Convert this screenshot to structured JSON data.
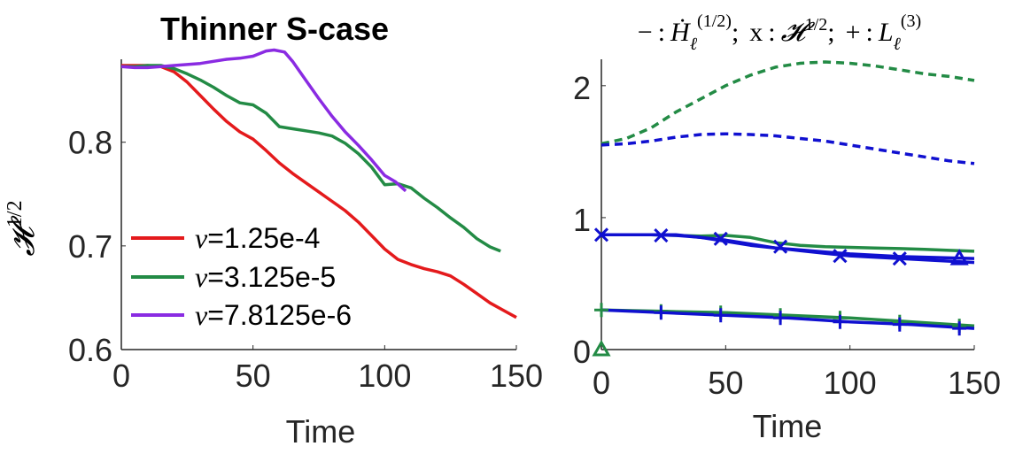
{
  "chart_data": [
    {
      "type": "line",
      "title": "Thinner S-case",
      "xlabel": "Time",
      "ylabel": "𝓗",
      "ylabel_sup": "1/2",
      "xlim": [
        0,
        150
      ],
      "ylim": [
        0.6,
        0.88
      ],
      "xticks": [
        0,
        50,
        100,
        150
      ],
      "yticks": [
        0.6,
        0.7,
        0.8
      ],
      "ytick_labels": [
        "0.6",
        "0.7",
        "0.8"
      ],
      "legend_position": "bottom-left",
      "series": [
        {
          "name": "ν=1.25e-4",
          "nu_symbol": "ν",
          "nu_value": "=1.25e-4",
          "color": "#e41a1c",
          "x": [
            0,
            5,
            10,
            15,
            20,
            25,
            30,
            35,
            40,
            45,
            50,
            55,
            60,
            65,
            70,
            75,
            80,
            85,
            90,
            95,
            100,
            105,
            110,
            115,
            120,
            125,
            130,
            135,
            140,
            145,
            150
          ],
          "y": [
            0.874,
            0.874,
            0.874,
            0.873,
            0.868,
            0.858,
            0.845,
            0.832,
            0.82,
            0.81,
            0.803,
            0.792,
            0.78,
            0.77,
            0.761,
            0.752,
            0.743,
            0.734,
            0.723,
            0.71,
            0.697,
            0.687,
            0.682,
            0.678,
            0.675,
            0.671,
            0.663,
            0.654,
            0.645,
            0.638,
            0.631
          ]
        },
        {
          "name": "ν=3.125e-5",
          "nu_symbol": "ν",
          "nu_value": "=3.125e-5",
          "color": "#238b45",
          "x": [
            0,
            5,
            10,
            15,
            20,
            25,
            30,
            35,
            40,
            45,
            50,
            55,
            60,
            65,
            70,
            75,
            80,
            85,
            90,
            95,
            100,
            105,
            110,
            115,
            120,
            125,
            130,
            135,
            140,
            144
          ],
          "y": [
            0.873,
            0.873,
            0.874,
            0.874,
            0.871,
            0.866,
            0.86,
            0.853,
            0.845,
            0.838,
            0.836,
            0.828,
            0.815,
            0.813,
            0.811,
            0.809,
            0.806,
            0.799,
            0.789,
            0.776,
            0.759,
            0.76,
            0.756,
            0.746,
            0.737,
            0.727,
            0.718,
            0.707,
            0.699,
            0.695
          ]
        },
        {
          "name": "ν=7.8125e-6",
          "nu_symbol": "ν",
          "nu_value": "=7.8125e-6",
          "color": "#8a2be2",
          "x": [
            0,
            5,
            10,
            15,
            20,
            25,
            30,
            35,
            40,
            45,
            50,
            55,
            58,
            62,
            65,
            70,
            75,
            80,
            85,
            90,
            95,
            100,
            104,
            108
          ],
          "y": [
            0.873,
            0.872,
            0.872,
            0.873,
            0.874,
            0.875,
            0.876,
            0.878,
            0.88,
            0.881,
            0.883,
            0.888,
            0.889,
            0.887,
            0.878,
            0.86,
            0.842,
            0.825,
            0.81,
            0.797,
            0.783,
            0.768,
            0.762,
            0.753
          ]
        }
      ]
    },
    {
      "type": "line",
      "title": "− : Ḣℓ(1/2); x : 𝓗1/2; + : Lℓ(3)",
      "title_parts": {
        "minus": "−",
        "colon": ":",
        "H_dot": "Ḣ",
        "ell": "ℓ",
        "H_sup": "(1/2)",
        "semi": ";",
        "x": "x",
        "calH": "𝓗",
        "calH_sup": "1/2",
        "plus": "+",
        "L": "L",
        "L_sup": "(3)"
      },
      "xlabel": "Time",
      "xlim": [
        0,
        150
      ],
      "ylim": [
        0,
        2.2
      ],
      "xticks": [
        0,
        50,
        100,
        150
      ],
      "yticks": [
        0,
        1,
        2
      ],
      "ytick_labels": [
        "0",
        "1",
        "2"
      ],
      "series": [
        {
          "color": "#238b45",
          "style": "dashed",
          "x": [
            0,
            10,
            20,
            30,
            40,
            50,
            60,
            70,
            80,
            90,
            100,
            110,
            120,
            130,
            140,
            150
          ],
          "y": [
            1.56,
            1.6,
            1.68,
            1.8,
            1.9,
            2.0,
            2.08,
            2.14,
            2.17,
            2.18,
            2.17,
            2.15,
            2.12,
            2.09,
            2.07,
            2.04
          ]
        },
        {
          "color": "#1010d0",
          "style": "dashed",
          "x": [
            0,
            10,
            20,
            30,
            40,
            50,
            60,
            70,
            80,
            90,
            100,
            110,
            120,
            130,
            140,
            150
          ],
          "y": [
            1.55,
            1.56,
            1.58,
            1.61,
            1.63,
            1.635,
            1.63,
            1.62,
            1.6,
            1.58,
            1.55,
            1.52,
            1.49,
            1.46,
            1.43,
            1.41
          ]
        },
        {
          "color": "#238b45",
          "style": "solid",
          "x": [
            0,
            10,
            20,
            30,
            40,
            50,
            60,
            70,
            80,
            90,
            100,
            110,
            120,
            130,
            140,
            150
          ],
          "y": [
            0.87,
            0.87,
            0.87,
            0.865,
            0.86,
            0.865,
            0.85,
            0.81,
            0.79,
            0.78,
            0.775,
            0.77,
            0.765,
            0.76,
            0.752,
            0.745
          ]
        },
        {
          "color": "#1010d0",
          "style": "solid",
          "x": [
            0,
            10,
            20,
            30,
            40,
            50,
            60,
            70,
            80,
            90,
            100,
            110,
            120,
            130,
            140,
            150
          ],
          "y": [
            0.87,
            0.87,
            0.87,
            0.87,
            0.85,
            0.83,
            0.8,
            0.77,
            0.75,
            0.73,
            0.71,
            0.7,
            0.69,
            0.68,
            0.67,
            0.66
          ]
        },
        {
          "color": "#1010d0",
          "style": "solid",
          "x": [
            0,
            10,
            20,
            30,
            40,
            50,
            60,
            70,
            80,
            90,
            100,
            110,
            120,
            130,
            140,
            150
          ],
          "y": [
            0.87,
            0.87,
            0.87,
            0.865,
            0.85,
            0.82,
            0.79,
            0.77,
            0.755,
            0.74,
            0.725,
            0.715,
            0.705,
            0.7,
            0.695,
            0.69
          ]
        },
        {
          "color": "#238b45",
          "style": "solid",
          "x": [
            0,
            25,
            50,
            75,
            100,
            125,
            150
          ],
          "y": [
            0.3,
            0.29,
            0.28,
            0.26,
            0.24,
            0.21,
            0.18
          ]
        },
        {
          "color": "#1010d0",
          "style": "solid",
          "x": [
            0,
            25,
            50,
            75,
            100,
            125,
            150
          ],
          "y": [
            0.3,
            0.28,
            0.26,
            0.24,
            0.21,
            0.19,
            0.16
          ]
        }
      ],
      "markers": {
        "x_blue": {
          "color": "#1010d0",
          "x": [
            0,
            24,
            48,
            72,
            96,
            120
          ],
          "y": [
            0.87,
            0.865,
            0.84,
            0.78,
            0.71,
            0.69
          ]
        },
        "plus_green": {
          "color": "#238b45",
          "x": [
            0,
            24,
            48,
            72,
            96,
            120,
            144
          ],
          "y": [
            0.3,
            0.29,
            0.28,
            0.26,
            0.24,
            0.21,
            0.18
          ]
        },
        "plus_blue": {
          "color": "#1010d0",
          "x": [
            24,
            48,
            72,
            96,
            120,
            144
          ],
          "y": [
            0.28,
            0.26,
            0.24,
            0.21,
            0.19,
            0.16
          ]
        },
        "triangles": [
          {
            "color": "#238b45",
            "x": 0,
            "y": 0.0
          },
          {
            "color": "#1010d0",
            "x": 144,
            "y": 0.69
          }
        ]
      }
    }
  ]
}
